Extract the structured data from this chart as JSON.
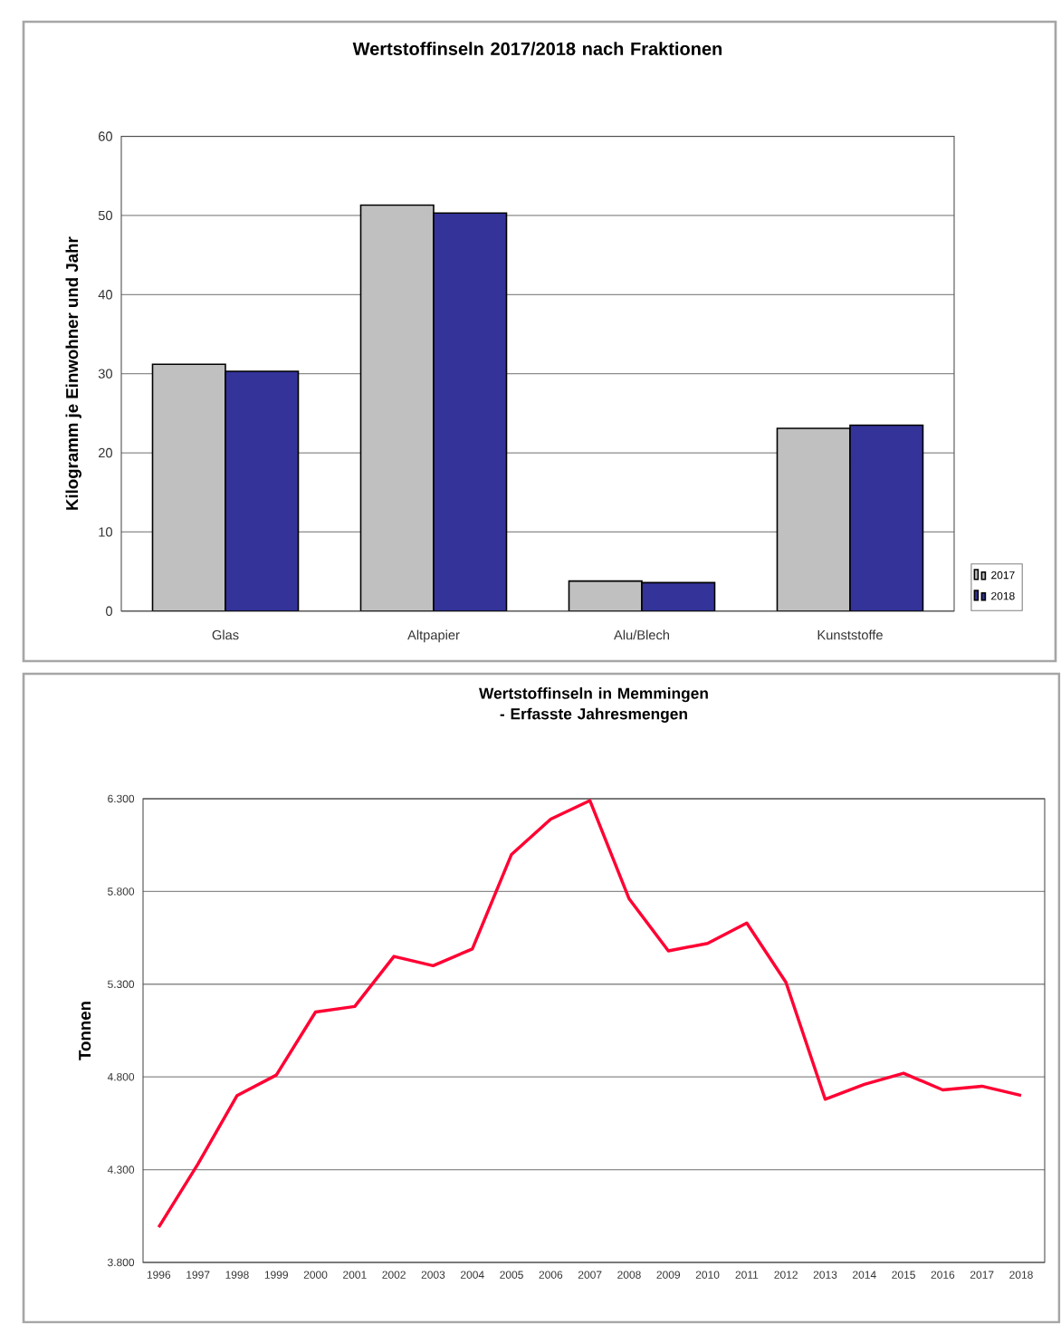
{
  "chart_data": [
    {
      "type": "bar",
      "title": "Wertstoffinseln 2017/2018 nach Fraktionen",
      "ylabel": "Kilogramm je Einwohner und Jahr",
      "categories": [
        "Glas",
        "Altpapier",
        "Alu/Blech",
        "Kunststoffe"
      ],
      "series": [
        {
          "name": "2017",
          "color": "#c0c0c0",
          "values": [
            31.2,
            51.3,
            3.8,
            23.1
          ]
        },
        {
          "name": "2018",
          "color": "#333399",
          "values": [
            30.3,
            50.3,
            3.6,
            23.5
          ]
        }
      ],
      "ylim": [
        0,
        60
      ],
      "yticks": [
        0,
        10,
        20,
        30,
        40,
        50,
        60
      ],
      "grid": "y",
      "legend": "right"
    },
    {
      "type": "line",
      "title": "Wertstoffinseln in Memmingen - Erfasste Jahresmengen",
      "ylabel": "Tonnen",
      "x": [
        1996,
        1997,
        1998,
        1999,
        2000,
        2001,
        2002,
        2003,
        2004,
        2005,
        2006,
        2007,
        2008,
        2009,
        2010,
        2011,
        2012,
        2013,
        2014,
        2015,
        2016,
        2017,
        2018
      ],
      "series": [
        {
          "color": "#ff0033",
          "values": [
            3990,
            4330,
            4700,
            4810,
            5150,
            5180,
            5450,
            5400,
            5490,
            6000,
            6190,
            6290,
            5760,
            5480,
            5520,
            5630,
            5310,
            4680,
            4760,
            4820,
            4730,
            4750,
            4700
          ]
        }
      ],
      "xlim": [
        1995.6,
        2018.6
      ],
      "xticks": [
        1996,
        1997,
        1998,
        1999,
        2000,
        2001,
        2002,
        2003,
        2004,
        2005,
        2006,
        2007,
        2008,
        2009,
        2010,
        2011,
        2012,
        2013,
        2014,
        2015,
        2016,
        2017,
        2018
      ],
      "ylim": [
        3800,
        6300
      ],
      "yticks": [
        {
          "value": 3800,
          "label": "3.800"
        },
        {
          "value": 4300,
          "label": "4.300"
        },
        {
          "value": 4800,
          "label": "4.800"
        },
        {
          "value": 5300,
          "label": "5.300"
        },
        {
          "value": 5800,
          "label": "5.800"
        },
        {
          "value": 6300,
          "label": "6.300"
        }
      ],
      "grid": "y",
      "marker": "none",
      "line_style": "solid"
    }
  ]
}
